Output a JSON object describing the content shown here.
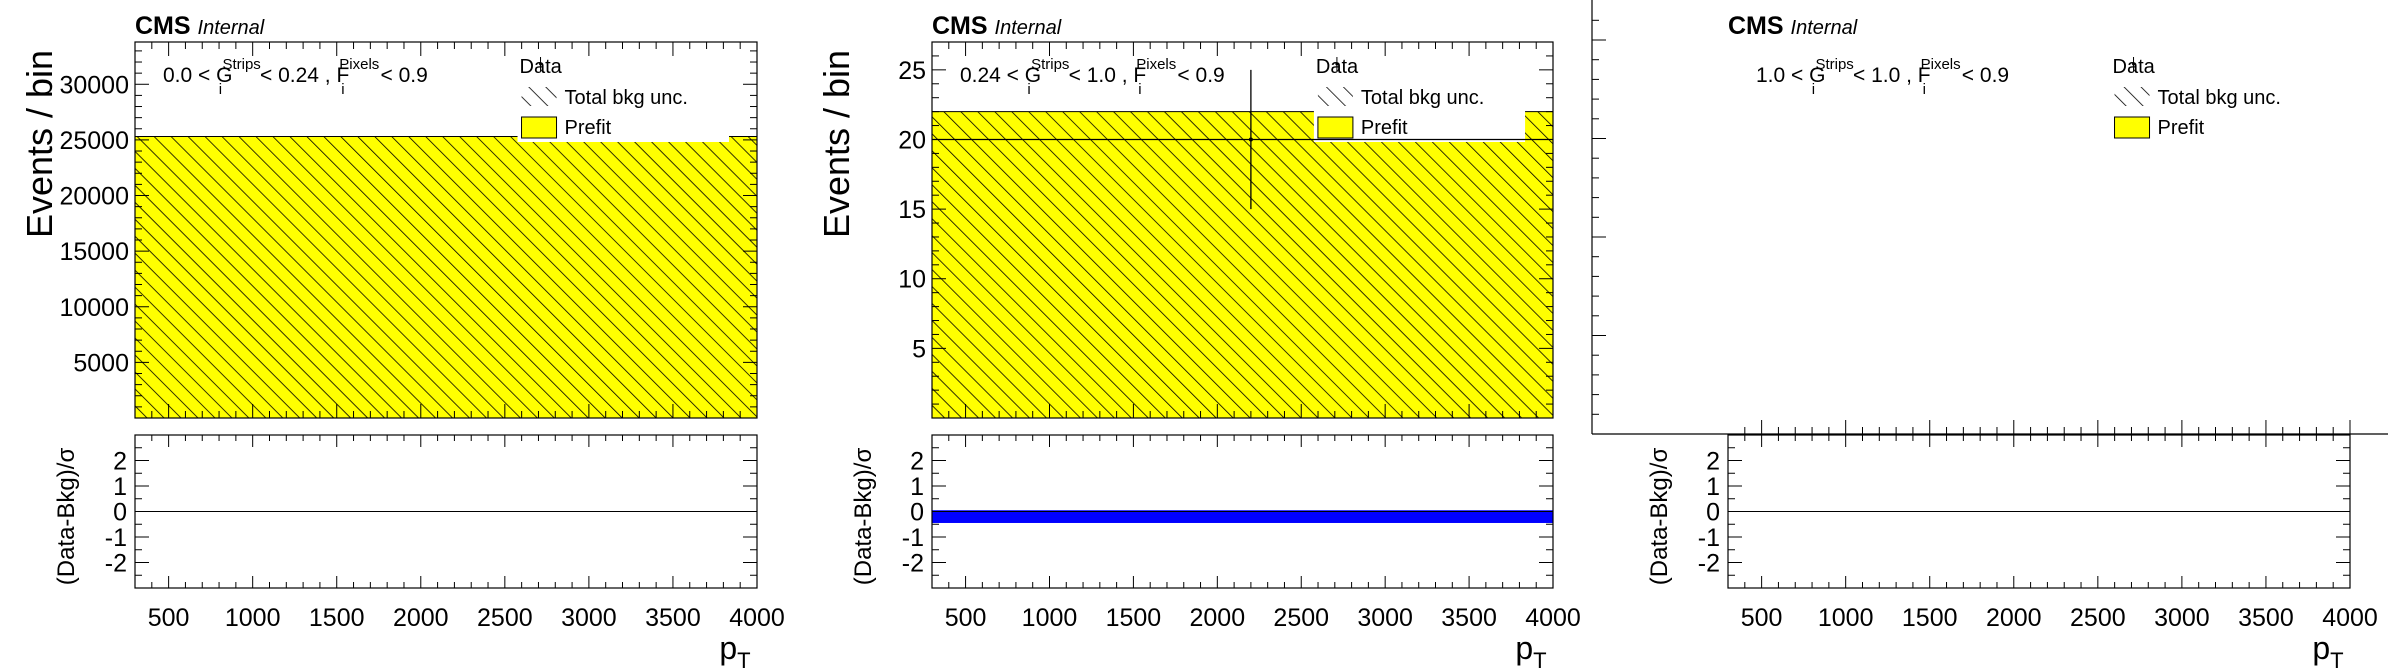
{
  "chart_data": [
    {
      "type": "bar",
      "cms_label": "CMS",
      "internal_label": "Internal",
      "selection": {
        "pre": "0.0 < G",
        "sup1": "Strips",
        "mid": " < 0.24 , F",
        "sup2": "Pixels",
        "post": " < 0.9"
      },
      "ylabel": "Events / bin",
      "xlabel": "p",
      "xlabel_sub": "T",
      "ratio_ylabel": "(Data-Bkg)/σ",
      "legend": [
        "Data",
        "Total bkg unc.",
        "Prefit"
      ],
      "xlim": [
        300,
        4000
      ],
      "ylim": [
        0,
        33800
      ],
      "yticks": [
        5000,
        10000,
        15000,
        20000,
        25000,
        30000
      ],
      "xticks": [
        500,
        1000,
        1500,
        2000,
        2500,
        3000,
        3500,
        4000
      ],
      "prefit": {
        "x_range": [
          300,
          4000
        ],
        "value": 25300
      },
      "data_points": [],
      "ratio_ylim": [
        -3,
        3
      ],
      "ratio_yticks": [
        -2,
        -1,
        0,
        1,
        2
      ],
      "ratio_band": null
    },
    {
      "type": "bar",
      "cms_label": "CMS",
      "internal_label": "Internal",
      "selection": {
        "pre": "0.24 < G",
        "sup1": "Strips",
        "mid": " < 1.0 , F",
        "sup2": "Pixels",
        "post": " < 0.9"
      },
      "ylabel": "Events / bin",
      "xlabel": "p",
      "xlabel_sub": "T",
      "ratio_ylabel": "(Data-Bkg)/σ",
      "legend": [
        "Data",
        "Total bkg unc.",
        "Prefit"
      ],
      "xlim": [
        300,
        4000
      ],
      "ylim": [
        0,
        27
      ],
      "yticks": [
        5,
        10,
        15,
        20,
        25
      ],
      "xticks": [
        500,
        1000,
        1500,
        2000,
        2500,
        3000,
        3500,
        4000
      ],
      "prefit": {
        "x_range": [
          300,
          4000
        ],
        "value": 22
      },
      "data_points": [
        {
          "x": 2200,
          "y": 20,
          "x_low": 300,
          "x_high": 4000,
          "y_low": 15,
          "y_high": 25
        }
      ],
      "ratio_ylim": [
        -3,
        3
      ],
      "ratio_yticks": [
        -2,
        -1,
        0,
        1,
        2
      ],
      "ratio_band": {
        "low": -0.45,
        "high": 0.05,
        "color": "#0000ff"
      }
    },
    {
      "type": "bar",
      "cms_label": "CMS",
      "internal_label": "Internal",
      "selection": {
        "pre": "1.0 < G",
        "sup1": "Strips",
        "mid": " < 1.0 , F",
        "sup2": "Pixels",
        "post": " < 0.9"
      },
      "ylabel": "",
      "xlabel": "p",
      "xlabel_sub": "T",
      "ratio_ylabel": "(Data-Bkg)/σ",
      "legend": [
        "Data",
        "Total bkg unc.",
        "Prefit"
      ],
      "xlim": [
        300,
        4000
      ],
      "ylim": [
        0,
        1
      ],
      "yticks": [],
      "xticks": [
        500,
        1000,
        1500,
        2000,
        2500,
        3000,
        3500,
        4000
      ],
      "prefit": null,
      "data_points": [],
      "ratio_ylim": [
        -3,
        3
      ],
      "ratio_yticks": [
        -2,
        -1,
        0,
        1,
        2
      ],
      "ratio_band": null
    }
  ],
  "colors": {
    "prefit_fill": "#ffff00",
    "hatch": "#000000",
    "ratio_band": "#0000ff"
  }
}
